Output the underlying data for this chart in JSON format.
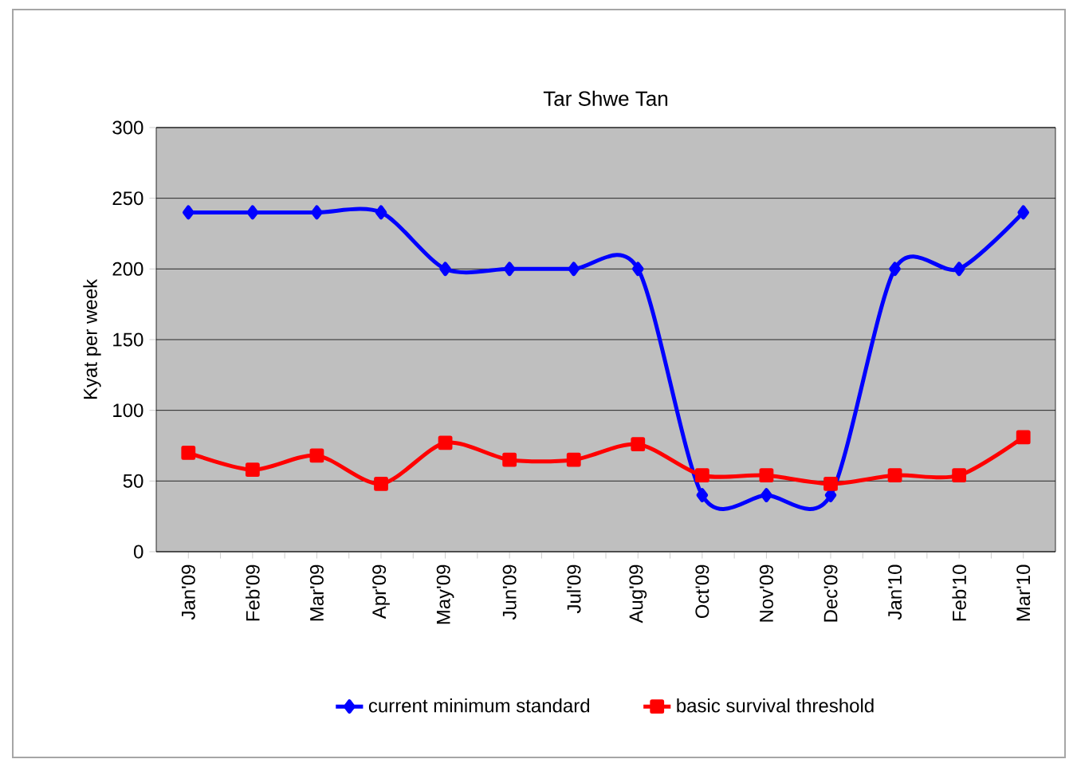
{
  "chart_data": {
    "type": "line",
    "title": "Tar Shwe Tan",
    "ylabel": "Kyat per week",
    "categories": [
      "Jan'09",
      "Feb'09",
      "Mar'09",
      "Apr'09",
      "May'09",
      "Jun'09",
      "Jul'09",
      "Aug'09",
      "Oct'09",
      "Nov'09",
      "Dec'09",
      "Jan'10",
      "Feb'10",
      "Mar'10"
    ],
    "series": [
      {
        "name": "current minimum standard",
        "color": "#0000ff",
        "marker": "diamond",
        "values": [
          240,
          240,
          240,
          240,
          200,
          200,
          200,
          200,
          40,
          40,
          40,
          200,
          200,
          240
        ]
      },
      {
        "name": "basic survival threshold",
        "color": "#ff0000",
        "marker": "square",
        "values": [
          70,
          58,
          68,
          48,
          77,
          65,
          65,
          76,
          54,
          54,
          48,
          54,
          54,
          81
        ]
      }
    ],
    "ylim": [
      0,
      300
    ],
    "yticks": [
      0,
      50,
      100,
      150,
      200,
      250,
      300
    ],
    "grid": "y",
    "legend": "bottom",
    "line_style": "solid"
  }
}
